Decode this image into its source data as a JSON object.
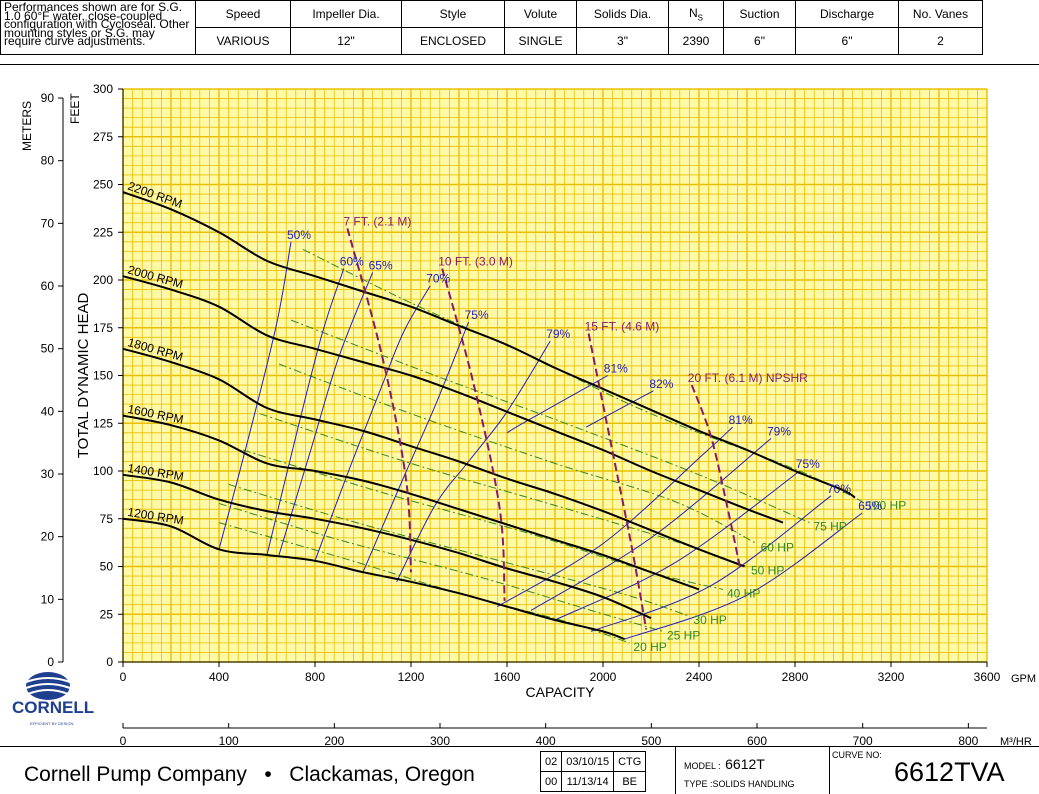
{
  "header": {
    "note": "Performances shown are for S.G. 1.0 60°F water, close-coupled configuration with Cycloseal. Other mounting styles or S.G. may require curve adjustments.",
    "columns": [
      {
        "label": "Speed",
        "value": "VARIOUS"
      },
      {
        "label": "Impeller Dia.",
        "value": "12\""
      },
      {
        "label": "Style",
        "value": "ENCLOSED"
      },
      {
        "label": "Volute",
        "value": "SINGLE"
      },
      {
        "label": "Solids Dia.",
        "value": "3\""
      },
      {
        "label": "NS",
        "value": "2390"
      },
      {
        "label": "Suction",
        "value": "6\""
      },
      {
        "label": "Discharge",
        "value": "6\""
      },
      {
        "label": "No. Vanes",
        "value": "2"
      }
    ]
  },
  "chart_data": {
    "type": "line",
    "xlabel": "CAPACITY",
    "xunit": "GPM",
    "xlim": [
      0,
      3600
    ],
    "xticks": [
      0,
      400,
      800,
      1200,
      1600,
      2000,
      2400,
      2800,
      3200,
      3600
    ],
    "x2_unit": "M³/HR",
    "x2ticks": [
      0,
      100,
      200,
      300,
      400,
      500,
      600,
      700,
      800
    ],
    "ylabel": "TOTAL DYNAMIC HEAD",
    "yunit": "FEET",
    "ylim": [
      0,
      300
    ],
    "yticks": [
      0,
      25,
      50,
      75,
      100,
      125,
      150,
      175,
      200,
      225,
      250,
      275,
      300
    ],
    "y2_unit": "METERS",
    "y2ticks": [
      0,
      10,
      20,
      30,
      40,
      50,
      60,
      70,
      80,
      90
    ],
    "colors": {
      "grid": "#e8c000",
      "background": "#fff9a8",
      "head": "#000000",
      "efficiency": "#2020c0",
      "npshr": "#8a1a6a",
      "hp": "#2e8b1e"
    },
    "head_curves": [
      {
        "name": "2200 RPM",
        "points": [
          [
            0,
            246
          ],
          [
            200,
            237
          ],
          [
            400,
            225
          ],
          [
            600,
            210
          ],
          [
            800,
            202
          ],
          [
            1000,
            194
          ],
          [
            1200,
            186
          ],
          [
            1400,
            176
          ],
          [
            1600,
            166
          ],
          [
            1800,
            154
          ],
          [
            2000,
            143
          ],
          [
            2200,
            132
          ],
          [
            2400,
            121
          ],
          [
            2600,
            111
          ],
          [
            2800,
            100
          ],
          [
            3000,
            90
          ],
          [
            3050,
            86
          ]
        ]
      },
      {
        "name": "2000 RPM",
        "points": [
          [
            0,
            202
          ],
          [
            200,
            195
          ],
          [
            400,
            186
          ],
          [
            600,
            171
          ],
          [
            800,
            164
          ],
          [
            1000,
            157
          ],
          [
            1200,
            150
          ],
          [
            1400,
            141
          ],
          [
            1600,
            131
          ],
          [
            1800,
            121
          ],
          [
            2000,
            111
          ],
          [
            2200,
            100
          ],
          [
            2400,
            90
          ],
          [
            2600,
            80
          ],
          [
            2750,
            73
          ]
        ]
      },
      {
        "name": "1800 RPM",
        "points": [
          [
            0,
            164
          ],
          [
            200,
            157
          ],
          [
            400,
            148
          ],
          [
            600,
            133
          ],
          [
            800,
            127
          ],
          [
            1000,
            121
          ],
          [
            1200,
            113
          ],
          [
            1400,
            105
          ],
          [
            1600,
            96
          ],
          [
            1800,
            88
          ],
          [
            2000,
            79
          ],
          [
            2200,
            69
          ],
          [
            2400,
            59
          ],
          [
            2590,
            50
          ]
        ]
      },
      {
        "name": "1600 RPM",
        "points": [
          [
            0,
            129
          ],
          [
            200,
            124
          ],
          [
            400,
            116
          ],
          [
            600,
            104
          ],
          [
            800,
            100
          ],
          [
            1000,
            95
          ],
          [
            1200,
            88
          ],
          [
            1400,
            80
          ],
          [
            1600,
            72
          ],
          [
            1800,
            64
          ],
          [
            2000,
            56
          ],
          [
            2200,
            47
          ],
          [
            2400,
            38
          ]
        ]
      },
      {
        "name": "1400 RPM",
        "points": [
          [
            0,
            98
          ],
          [
            200,
            94
          ],
          [
            400,
            85
          ],
          [
            600,
            79
          ],
          [
            800,
            75
          ],
          [
            1000,
            70
          ],
          [
            1200,
            64
          ],
          [
            1400,
            57
          ],
          [
            1600,
            49
          ],
          [
            1800,
            42
          ],
          [
            2000,
            34
          ],
          [
            2200,
            23
          ]
        ]
      },
      {
        "name": "1200 RPM",
        "points": [
          [
            0,
            75
          ],
          [
            200,
            71
          ],
          [
            400,
            59
          ],
          [
            600,
            56
          ],
          [
            800,
            53
          ],
          [
            1000,
            47
          ],
          [
            1200,
            42
          ],
          [
            1400,
            36
          ],
          [
            1600,
            29
          ],
          [
            1800,
            22
          ],
          [
            2000,
            16
          ],
          [
            2090,
            12
          ]
        ]
      }
    ],
    "efficiency_curves": [
      {
        "name": "50%",
        "points": [
          [
            400,
            59
          ],
          [
            520,
            116
          ],
          [
            640,
            177
          ],
          [
            700,
            220
          ]
        ]
      },
      {
        "name": "60%",
        "points": [
          [
            600,
            56
          ],
          [
            720,
            118
          ],
          [
            830,
            172
          ],
          [
            920,
            206
          ]
        ]
      },
      {
        "name": "65%",
        "points": [
          [
            650,
            56
          ],
          [
            780,
            110
          ],
          [
            900,
            160
          ],
          [
            1040,
            204
          ]
        ]
      },
      {
        "name": "70%",
        "points": [
          [
            800,
            53
          ],
          [
            940,
            100
          ],
          [
            1080,
            145
          ],
          [
            1170,
            173
          ],
          [
            1280,
            197
          ]
        ]
      },
      {
        "name": "75%",
        "points": [
          [
            1000,
            47
          ],
          [
            1160,
            94
          ],
          [
            1300,
            134
          ],
          [
            1440,
            178
          ]
        ]
      },
      {
        "name": "79%",
        "points": [
          [
            1140,
            42
          ],
          [
            1300,
            82
          ],
          [
            1440,
            105
          ],
          [
            1600,
            131
          ],
          [
            1780,
            168
          ]
        ]
      },
      {
        "name": "81%",
        "points": [
          [
            1600,
            120
          ],
          [
            1680,
            126
          ],
          [
            2020,
            150
          ]
        ]
      },
      {
        "name": "82%",
        "points": [
          [
            1930,
            123
          ],
          [
            2210,
            142
          ]
        ]
      },
      {
        "name": "81%",
        "points": [
          [
            1560,
            29
          ],
          [
            2000,
            62
          ],
          [
            2420,
            109
          ],
          [
            2540,
            123
          ]
        ]
      },
      {
        "name": "79%",
        "points": [
          [
            1700,
            27
          ],
          [
            2200,
            65
          ],
          [
            2700,
            117
          ]
        ]
      },
      {
        "name": "75%",
        "points": [
          [
            1800,
            22
          ],
          [
            2300,
            52
          ],
          [
            2820,
            100
          ]
        ]
      },
      {
        "name": "70%",
        "points": [
          [
            1950,
            16
          ],
          [
            2450,
            40
          ],
          [
            2950,
            87
          ]
        ]
      },
      {
        "name": "65%",
        "points": [
          [
            2090,
            12
          ],
          [
            2600,
            35
          ],
          [
            3080,
            78
          ]
        ]
      }
    ],
    "npshr_curves": [
      {
        "name": "7 FT. (2.1 M)",
        "points": [
          [
            935,
            227
          ],
          [
            1080,
            160
          ],
          [
            1180,
            95
          ],
          [
            1200,
            47
          ]
        ]
      },
      {
        "name": "10 FT. (3.0 M)",
        "points": [
          [
            1330,
            206
          ],
          [
            1460,
            146
          ],
          [
            1570,
            80
          ],
          [
            1590,
            32
          ]
        ]
      },
      {
        "name": "15 FT. (4.6 M)",
        "points": [
          [
            1940,
            172
          ],
          [
            2040,
            110
          ],
          [
            2120,
            60
          ],
          [
            2180,
            17
          ]
        ]
      },
      {
        "name": "20 FT. (6.1 M) NPSHR",
        "points": [
          [
            2370,
            145
          ],
          [
            2450,
            118
          ],
          [
            2520,
            80
          ],
          [
            2570,
            50
          ]
        ]
      }
    ],
    "hp_curves": [
      {
        "name": "100 HP",
        "points": [
          [
            750,
            216
          ],
          [
            1200,
            188
          ],
          [
            1700,
            160
          ],
          [
            2200,
            130
          ],
          [
            2800,
            101
          ],
          [
            3080,
            84
          ]
        ]
      },
      {
        "name": "75 HP",
        "points": [
          [
            700,
            179
          ],
          [
            1300,
            150
          ],
          [
            1800,
            127
          ],
          [
            2400,
            98
          ],
          [
            2860,
            73
          ]
        ]
      },
      {
        "name": "60 HP",
        "points": [
          [
            650,
            156
          ],
          [
            1200,
            130
          ],
          [
            1800,
            104
          ],
          [
            2300,
            84
          ],
          [
            2640,
            62
          ]
        ]
      },
      {
        "name": "50 HP",
        "points": [
          [
            570,
            130
          ],
          [
            1200,
            104
          ],
          [
            1800,
            82
          ],
          [
            2280,
            64
          ],
          [
            2600,
            50
          ]
        ]
      },
      {
        "name": "40 HP",
        "points": [
          [
            500,
            111
          ],
          [
            1100,
            88
          ],
          [
            1700,
            67
          ],
          [
            2200,
            47
          ],
          [
            2500,
            38
          ]
        ]
      },
      {
        "name": "30 HP",
        "points": [
          [
            440,
            93
          ],
          [
            1000,
            72
          ],
          [
            1600,
            52
          ],
          [
            2100,
            35
          ],
          [
            2360,
            24
          ]
        ]
      },
      {
        "name": "25 HP",
        "points": [
          [
            400,
            83
          ],
          [
            900,
            64
          ],
          [
            1500,
            44
          ],
          [
            1950,
            27
          ],
          [
            2250,
            16
          ]
        ]
      },
      {
        "name": "20 HP",
        "points": [
          [
            400,
            73
          ],
          [
            900,
            55
          ],
          [
            1400,
            36
          ],
          [
            1850,
            21
          ],
          [
            2110,
            10
          ]
        ]
      }
    ]
  },
  "logo": {
    "name": "CORNELL",
    "tagline": "EFFICIENT BY DESIGN"
  },
  "footer": {
    "company": "Cornell Pump Company   •   Clackamas, Oregon",
    "revisions": [
      {
        "rev": "02",
        "date": "03/10/15",
        "by": "CTG"
      },
      {
        "rev": "00",
        "date": "11/13/14",
        "by": "BE"
      }
    ],
    "model_label": "MODEL :",
    "model": "6612T",
    "type_label": "TYPE :",
    "type": "SOLIDS HANDLING",
    "curve_no_label": "CURVE NO:",
    "curve_no": "6612TVA"
  }
}
